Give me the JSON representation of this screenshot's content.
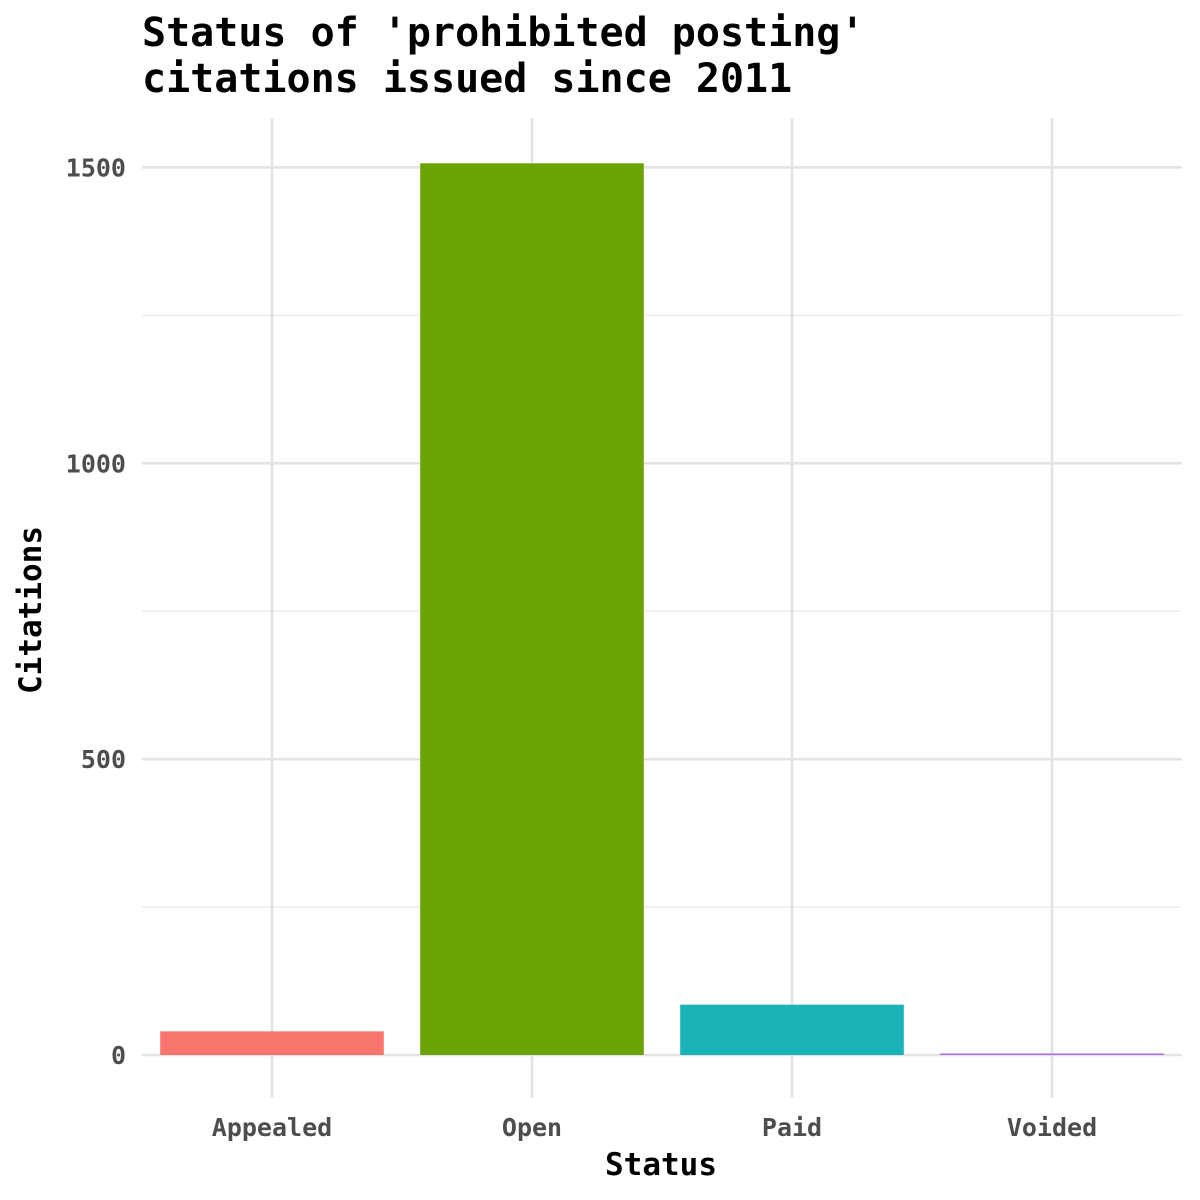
{
  "chart_data": {
    "type": "bar",
    "title": [
      "Status of 'prohibited posting'",
      "citations issued since 2011"
    ],
    "xlabel": "Status",
    "ylabel": "Citations",
    "categories": [
      "Appealed",
      "Open",
      "Paid",
      "Voided"
    ],
    "values": [
      40,
      1507,
      85,
      2
    ],
    "colors": [
      "#F8766D",
      "#6BA304",
      "#1AB3B8",
      "#B563F8"
    ],
    "ylim": [
      -80,
      1585
    ],
    "yticks": [
      0,
      500,
      1000,
      1500
    ],
    "ytick_labels": [
      "0",
      "500",
      "1000",
      "1500"
    ],
    "grid": true,
    "legend": "none"
  }
}
